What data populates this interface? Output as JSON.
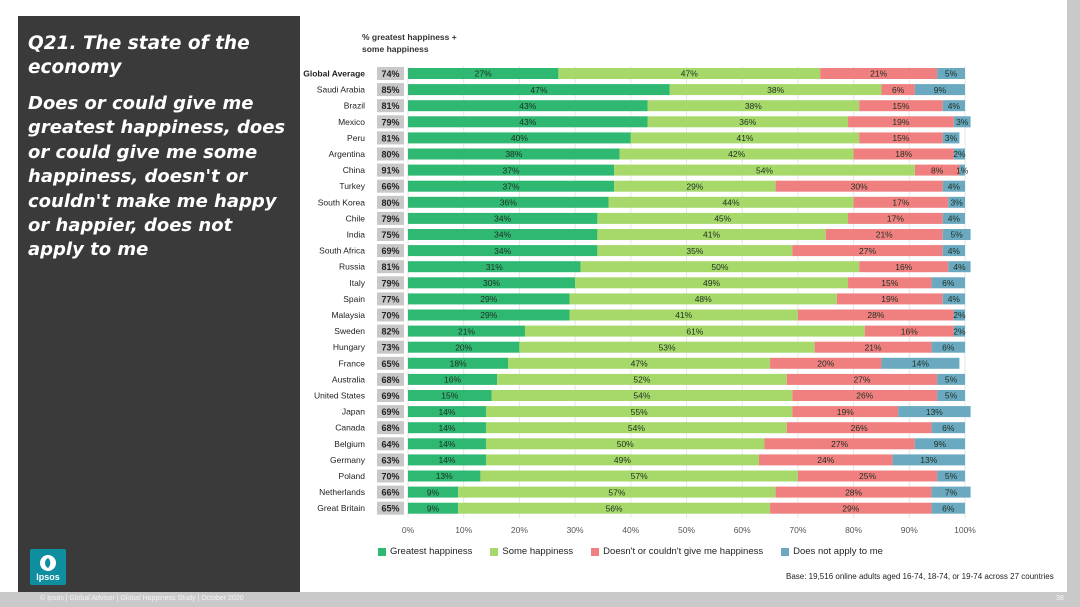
{
  "panel": {
    "title": "Q21. The state of the economy",
    "question": "Does or could give me greatest happiness, does or could give me some happiness, doesn't or couldn't make me happy or happier, does not apply to me",
    "logo_text": "Ipsos"
  },
  "column_header": "% greatest happiness + some happiness",
  "base_note": "Base: 19,516 online adults aged 16-74, 18-74, or 19-74 across 27 countries",
  "footer": "© Ipsos | Global Advisor | Global Happiness Study | October 2020",
  "page_number": "38",
  "colors": {
    "greatest": "#2eb872",
    "some": "#a6d96a",
    "not": "#f08080",
    "na": "#6aa9c0",
    "total_box": "#c8c8c8"
  },
  "chart_data": {
    "type": "bar",
    "orientation": "horizontal",
    "stacked": true,
    "xlim": [
      0,
      100
    ],
    "xticks": [
      "0%",
      "10%",
      "20%",
      "30%",
      "40%",
      "50%",
      "60%",
      "70%",
      "80%",
      "90%",
      "100%"
    ],
    "legend_placement": "bottom",
    "series": [
      {
        "name": "Greatest happiness",
        "color_key": "greatest"
      },
      {
        "name": "Some happiness",
        "color_key": "some"
      },
      {
        "name": "Doesn't or couldn't give me happiness",
        "color_key": "not"
      },
      {
        "name": "Does not apply to me",
        "color_key": "na"
      }
    ],
    "rows": [
      {
        "label": "Global Average",
        "total": "74%",
        "values": [
          27,
          47,
          21,
          5
        ],
        "bold": true
      },
      {
        "label": "Saudi Arabia",
        "total": "85%",
        "values": [
          47,
          38,
          6,
          9
        ]
      },
      {
        "label": "Brazil",
        "total": "81%",
        "values": [
          43,
          38,
          15,
          4
        ]
      },
      {
        "label": "Mexico",
        "total": "79%",
        "values": [
          43,
          36,
          19,
          3
        ]
      },
      {
        "label": "Peru",
        "total": "81%",
        "values": [
          40,
          41,
          15,
          3
        ]
      },
      {
        "label": "Argentina",
        "total": "80%",
        "values": [
          38,
          42,
          18,
          2
        ]
      },
      {
        "label": "China",
        "total": "91%",
        "values": [
          37,
          54,
          8,
          1
        ]
      },
      {
        "label": "Turkey",
        "total": "66%",
        "values": [
          37,
          29,
          30,
          4
        ]
      },
      {
        "label": "South Korea",
        "total": "80%",
        "values": [
          36,
          44,
          17,
          3
        ]
      },
      {
        "label": "Chile",
        "total": "79%",
        "values": [
          34,
          45,
          17,
          4
        ]
      },
      {
        "label": "India",
        "total": "75%",
        "values": [
          34,
          41,
          21,
          5
        ]
      },
      {
        "label": "South Africa",
        "total": "69%",
        "values": [
          34,
          35,
          27,
          4
        ]
      },
      {
        "label": "Russia",
        "total": "81%",
        "values": [
          31,
          50,
          16,
          4
        ]
      },
      {
        "label": "Italy",
        "total": "79%",
        "values": [
          30,
          49,
          15,
          6
        ]
      },
      {
        "label": "Spain",
        "total": "77%",
        "values": [
          29,
          48,
          19,
          4
        ]
      },
      {
        "label": "Malaysia",
        "total": "70%",
        "values": [
          29,
          41,
          28,
          2
        ]
      },
      {
        "label": "Sweden",
        "total": "82%",
        "values": [
          21,
          61,
          16,
          2
        ]
      },
      {
        "label": "Hungary",
        "total": "73%",
        "values": [
          20,
          53,
          21,
          6
        ]
      },
      {
        "label": "France",
        "total": "65%",
        "values": [
          18,
          47,
          20,
          14
        ]
      },
      {
        "label": "Australia",
        "total": "68%",
        "values": [
          16,
          52,
          27,
          5
        ]
      },
      {
        "label": "United States",
        "total": "69%",
        "values": [
          15,
          54,
          26,
          5
        ]
      },
      {
        "label": "Japan",
        "total": "69%",
        "values": [
          14,
          55,
          19,
          13
        ]
      },
      {
        "label": "Canada",
        "total": "68%",
        "values": [
          14,
          54,
          26,
          6
        ]
      },
      {
        "label": "Belgium",
        "total": "64%",
        "values": [
          14,
          50,
          27,
          9
        ]
      },
      {
        "label": "Germany",
        "total": "63%",
        "values": [
          14,
          49,
          24,
          13
        ]
      },
      {
        "label": "Poland",
        "total": "70%",
        "values": [
          13,
          57,
          25,
          5
        ]
      },
      {
        "label": "Netherlands",
        "total": "66%",
        "values": [
          9,
          57,
          28,
          7
        ]
      },
      {
        "label": "Great Britain",
        "total": "65%",
        "values": [
          9,
          56,
          29,
          6
        ]
      }
    ]
  }
}
